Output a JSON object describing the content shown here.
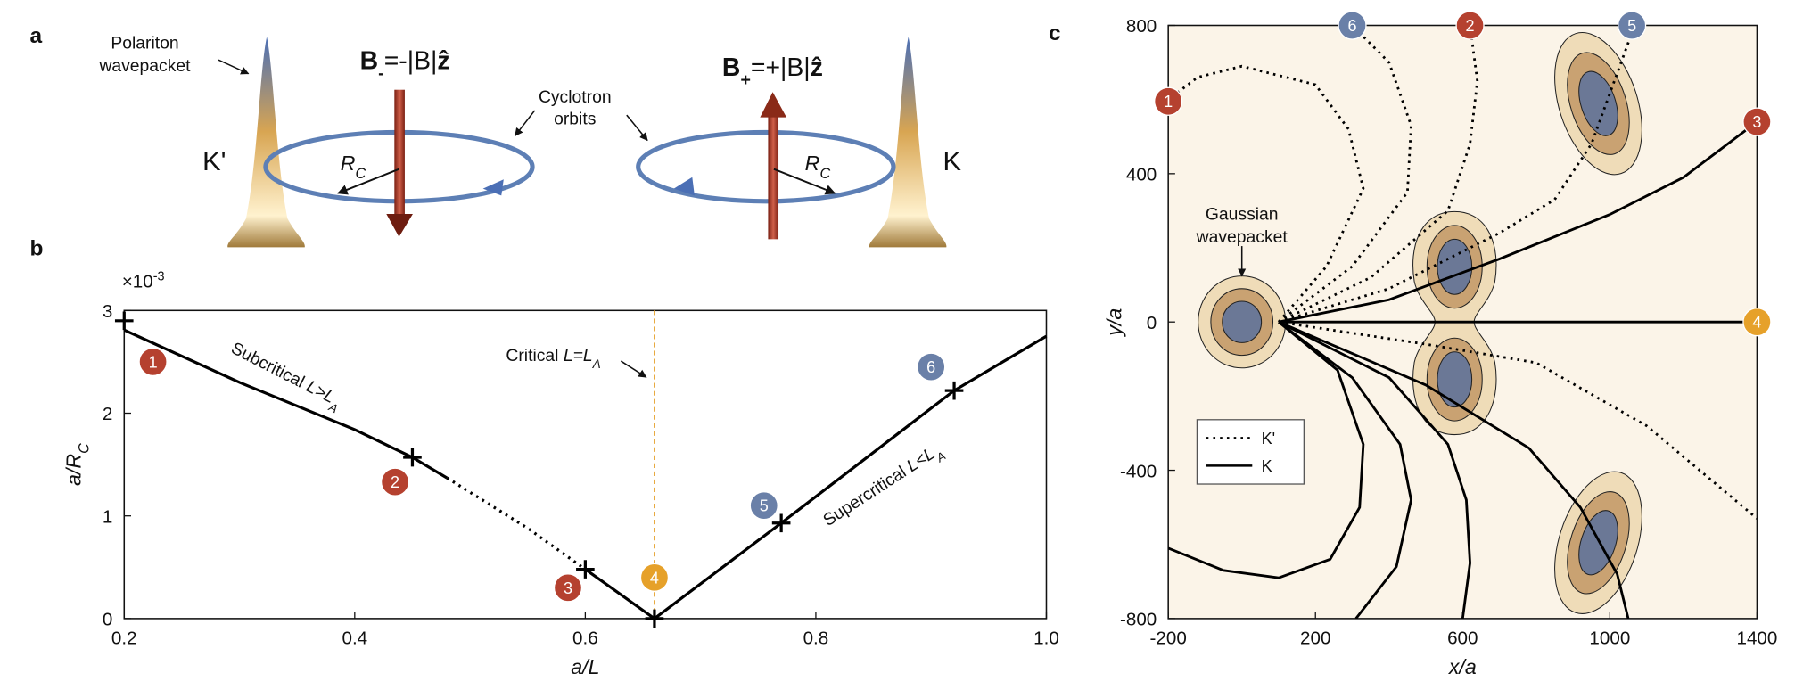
{
  "panel_labels": [
    "a",
    "b",
    "c"
  ],
  "panel_a": {
    "wavepacket_label": [
      "Polariton",
      "wavepacket"
    ],
    "orbits_label": [
      "Cyclotron",
      "orbits"
    ],
    "b_minus": [
      "B",
      "-",
      "=-|B|",
      "ẑ"
    ],
    "b_plus": [
      "B",
      "+",
      "=+|B|",
      "ẑ"
    ],
    "k_prime": "K'",
    "k": "K",
    "radius_left": [
      "R",
      "C"
    ],
    "radius_right": [
      "R",
      "C"
    ]
  },
  "chart_data": [
    {
      "type": "line",
      "xlabel": "a/L",
      "ylabel": [
        "a/R",
        "C"
      ],
      "y_multiplier": [
        "×10",
        "-3"
      ],
      "x": [
        0.2,
        0.3,
        0.4,
        0.45,
        0.48,
        0.55,
        0.6,
        0.66,
        0.77,
        0.92,
        1.0
      ],
      "series": [
        {
          "style": "solid",
          "color": "#000000",
          "values": [
            2.81,
            2.3,
            1.84,
            1.57,
            1.37,
            null,
            0.48,
            0,
            0.93,
            2.22,
            2.75
          ]
        },
        {
          "style": "dotted",
          "color": "#000000",
          "values": [
            null,
            null,
            null,
            null,
            1.37,
            0.88,
            0.48,
            null,
            null,
            null,
            null
          ]
        },
        {
          "style": "plus",
          "color": "#000000",
          "values": [
            2.9,
            null,
            null,
            1.57,
            null,
            null,
            0.48,
            0,
            0.93,
            2.22,
            null
          ]
        }
      ],
      "critical_x": 0.66,
      "critical_color": "#e6a12a",
      "critical_label": [
        "Critical ",
        "L=L",
        "A"
      ],
      "subcritical_label": [
        "Subcritical ",
        "L>L",
        "A"
      ],
      "supercritical_label": [
        "Supercritical ",
        "L<L",
        "A"
      ],
      "badges": [
        {
          "label": "1",
          "color": "#b5412f"
        },
        {
          "label": "2",
          "color": "#b5412f"
        },
        {
          "label": "3",
          "color": "#b5412f"
        },
        {
          "label": "4",
          "color": "#e6a12a"
        },
        {
          "label": "5",
          "color": "#6a80a8"
        },
        {
          "label": "6",
          "color": "#6a80a8"
        }
      ],
      "xlim": [
        0.2,
        1.0
      ],
      "ylim": [
        0,
        3
      ],
      "xticks": [
        0.2,
        0.4,
        0.6,
        0.8,
        {
          "value": 1,
          "label": "1.0"
        }
      ],
      "yticks": [
        0,
        1,
        2,
        3
      ]
    },
    {
      "type": "line",
      "xlabel": "x/a",
      "ylabel": "y/a",
      "background": "#fbf4e8",
      "annotation": [
        "Gaussian",
        "wavepacket"
      ],
      "legend": "lower left",
      "series": [
        {
          "name": "K'",
          "style": "dotted",
          "color": "#000000",
          "curves": [
            {
              "x": [
                100,
                230,
                330,
                290,
                200,
                0,
                -120,
                -200
              ],
              "values": [
                0,
                150,
                360,
                520,
                640,
                690,
                660,
                600
              ]
            },
            {
              "x": [
                100,
                300,
                450,
                460,
                400,
                300
              ],
              "values": [
                0,
                150,
                350,
                530,
                700,
                800
              ]
            },
            {
              "x": [
                100,
                350,
                560,
                620,
                640,
                620
              ],
              "values": [
                0,
                120,
                300,
                480,
                650,
                800
              ]
            },
            {
              "x": [
                100,
                400,
                700,
                850,
                950,
                1060
              ],
              "values": [
                0,
                90,
                240,
                330,
                480,
                780
              ]
            },
            {
              "x": [
                100,
                500,
                800,
                1100,
                1400
              ],
              "values": [
                0,
                -60,
                -110,
                -280,
                -530
              ]
            }
          ]
        },
        {
          "name": "K",
          "style": "solid",
          "color": "#000000",
          "curves": [
            {
              "x": [
                100,
                400,
                700,
                1000,
                1200,
                1400
              ],
              "values": [
                0,
                60,
                170,
                290,
                390,
                540
              ]
            },
            {
              "x": [
                100,
                1400
              ],
              "values": [
                0,
                0
              ]
            },
            {
              "x": [
                100,
                500,
                780,
                920,
                1020,
                1050
              ],
              "values": [
                0,
                -170,
                -340,
                -500,
                -680,
                -800
              ]
            },
            {
              "x": [
                100,
                400,
                560,
                610,
                620,
                600
              ],
              "values": [
                0,
                -150,
                -330,
                -480,
                -650,
                -800
              ]
            },
            {
              "x": [
                100,
                300,
                430,
                460,
                420,
                310
              ],
              "values": [
                0,
                -150,
                -330,
                -480,
                -660,
                -800
              ]
            },
            {
              "x": [
                100,
                260,
                330,
                320,
                240,
                100,
                -50,
                -200
              ],
              "values": [
                0,
                -130,
                -330,
                -500,
                -640,
                -690,
                -670,
                -610
              ]
            }
          ]
        }
      ],
      "badges": [
        {
          "label": "1",
          "color": "#b5412f"
        },
        {
          "label": "6",
          "color": "#6a80a8"
        },
        {
          "label": "2",
          "color": "#b5412f"
        },
        {
          "label": "5",
          "color": "#6a80a8"
        },
        {
          "label": "3",
          "color": "#b5412f"
        },
        {
          "label": "4",
          "color": "#e6a12a"
        }
      ],
      "xlim": [
        -200,
        1400
      ],
      "ylim": [
        -800,
        800
      ],
      "xticks": [
        -200,
        200,
        600,
        1000,
        1400
      ],
      "yticks": [
        -800,
        -400,
        0,
        400,
        800
      ]
    }
  ]
}
